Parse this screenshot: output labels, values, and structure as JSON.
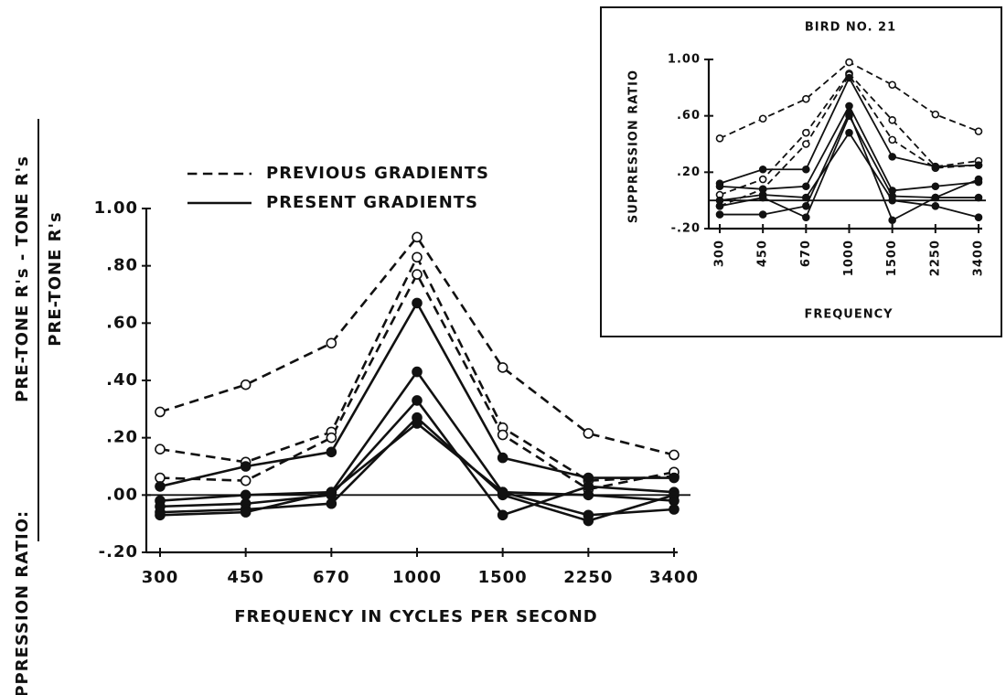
{
  "chart_data": [
    {
      "type": "line",
      "x_label": "FREQUENCY IN CYCLES PER SECOND",
      "y_label": {
        "prefix": "SUPPRESSION RATIO:",
        "numerator": "PRE-TONE R's - TONE R's",
        "denominator": "PRE-TONE R's"
      },
      "categories": [
        "300",
        "450",
        "670",
        "1000",
        "1500",
        "2250",
        "3400"
      ],
      "ylim": [
        -0.2,
        1.0
      ],
      "yticks": [
        {
          "value": 1.0,
          "label": "1.00"
        },
        {
          "value": 0.8,
          "label": ".80"
        },
        {
          "value": 0.6,
          "label": ".60"
        },
        {
          "value": 0.4,
          "label": ".40"
        },
        {
          "value": 0.2,
          "label": ".20"
        },
        {
          "value": 0.0,
          "label": ".00"
        },
        {
          "value": -0.2,
          "label": "-.20"
        }
      ],
      "zero_line": true,
      "legend": "upper-left",
      "series": [
        {
          "name": "PREVIOUS GRADIENTS",
          "color": "#111111",
          "dashed": true,
          "marker": "open",
          "lines": [
            [
              0.29,
              0.385,
              0.53,
              0.9,
              0.445,
              0.215,
              0.14
            ],
            [
              0.16,
              0.115,
              0.22,
              0.83,
              0.235,
              0.05,
              0.065
            ],
            [
              0.06,
              0.05,
              0.2,
              0.77,
              0.21,
              0.02,
              0.08
            ]
          ]
        },
        {
          "name": "PRESENT GRADIENTS",
          "color": "#111111",
          "dashed": false,
          "marker": "filled",
          "lines": [
            [
              0.03,
              0.1,
              0.15,
              0.67,
              0.13,
              0.06,
              0.06
            ],
            [
              -0.02,
              0.0,
              0.01,
              0.43,
              0.01,
              -0.07,
              -0.05
            ],
            [
              -0.04,
              -0.03,
              0.0,
              0.33,
              -0.07,
              0.03,
              0.01
            ],
            [
              -0.06,
              -0.05,
              -0.03,
              0.27,
              0.0,
              -0.09,
              0.0
            ],
            [
              -0.07,
              -0.06,
              0.01,
              0.25,
              0.01,
              0.0,
              -0.02
            ]
          ]
        }
      ]
    },
    {
      "type": "line",
      "title": "BIRD NO. 21",
      "x_label": "FREQUENCY",
      "y_label": {
        "prefix": "SUPPRESSION RATIO"
      },
      "categories": [
        "300",
        "450",
        "670",
        "1000",
        "1500",
        "2250",
        "3400"
      ],
      "ylim": [
        -0.2,
        1.0
      ],
      "yticks": [
        {
          "value": 1.0,
          "label": "1.00"
        },
        {
          "value": 0.6,
          "label": ".60"
        },
        {
          "value": 0.2,
          "label": ".20"
        },
        {
          "value": -0.2,
          "label": "-.20"
        }
      ],
      "zero_line": true,
      "series": [
        {
          "name": "PREVIOUS GRADIENTS",
          "color": "#111111",
          "dashed": true,
          "marker": "open",
          "lines": [
            [
              0.44,
              0.58,
              0.72,
              0.98,
              0.82,
              0.61,
              0.49
            ],
            [
              0.04,
              0.15,
              0.48,
              0.9,
              0.57,
              0.24,
              0.28
            ],
            [
              -0.04,
              0.08,
              0.4,
              0.89,
              0.43,
              0.23,
              0.25
            ]
          ]
        },
        {
          "name": "PRESENT GRADIENTS",
          "color": "#111111",
          "dashed": false,
          "marker": "filled",
          "lines": [
            [
              0.12,
              0.22,
              0.22,
              0.87,
              0.31,
              0.24,
              0.25
            ],
            [
              0.1,
              0.08,
              0.1,
              0.67,
              0.07,
              0.1,
              0.13
            ],
            [
              -0.1,
              -0.1,
              -0.04,
              0.62,
              -0.14,
              0.02,
              0.15
            ],
            [
              0.0,
              0.04,
              0.02,
              0.48,
              0.0,
              -0.04,
              -0.12
            ],
            [
              -0.04,
              0.02,
              -0.12,
              0.6,
              0.03,
              0.02,
              0.02
            ]
          ]
        }
      ]
    }
  ]
}
